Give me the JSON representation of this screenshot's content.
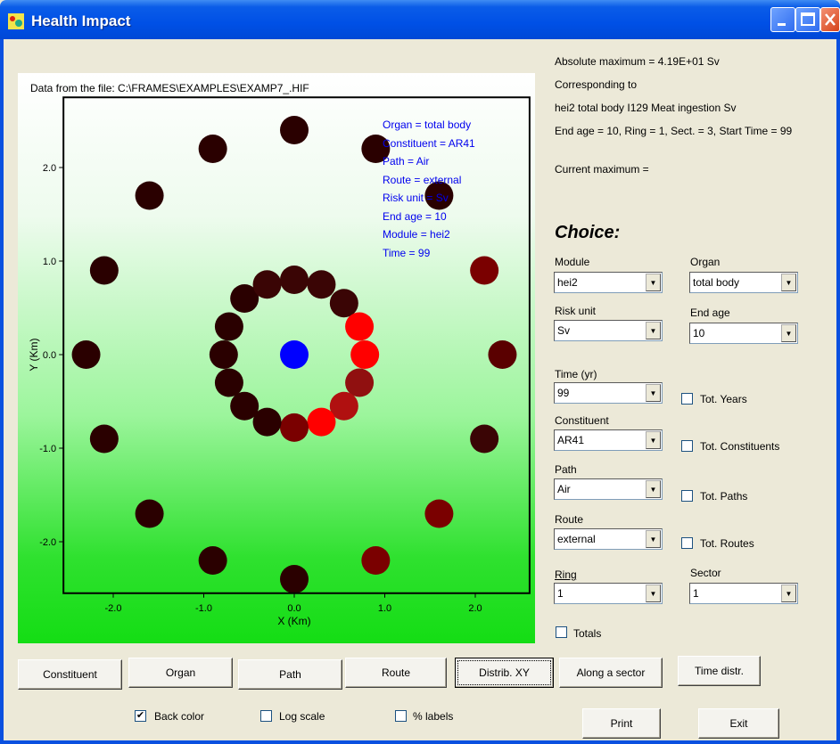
{
  "window": {
    "title": "Health Impact"
  },
  "plot": {
    "file_label": "Data from the file: C:\\FRAMES\\EXAMPLES\\EXAMP7_.HIF",
    "legend": [
      "Organ = total body",
      "Constituent = AR41",
      "Path = Air",
      "Route = external",
      "Risk unit = Sv",
      "End age = 10",
      "Module = hei2",
      "Time = 99"
    ],
    "x_axis_label": "X (Km)",
    "y_axis_label": "Y (Km)",
    "x_ticks": [
      "-2.0",
      "-1.0",
      "0.0",
      "1.0",
      "2.0"
    ],
    "y_ticks": [
      "2.0",
      "1.0",
      "0.0",
      "-1.0",
      "-2.0"
    ]
  },
  "chart_data": {
    "type": "scatter",
    "xlabel": "X (Km)",
    "ylabel": "Y (Km)",
    "xlim": [
      -2.4,
      2.6
    ],
    "ylim": [
      -2.5,
      2.7
    ],
    "colors": {
      "dark": "#2a0000",
      "dark2": "#3a0505",
      "mid": "#5a0000",
      "mid2": "#7a0000",
      "mid3": "#901010",
      "bright": "#b01010",
      "red": "#ff0000",
      "center": "#0000ff"
    },
    "points": [
      {
        "x": 0.0,
        "y": 2.4,
        "c": "dark"
      },
      {
        "x": 0.9,
        "y": 2.2,
        "c": "dark"
      },
      {
        "x": 1.6,
        "y": 1.7,
        "c": "dark"
      },
      {
        "x": 2.1,
        "y": 0.9,
        "c": "mid2"
      },
      {
        "x": 2.3,
        "y": 0.0,
        "c": "mid"
      },
      {
        "x": 2.1,
        "y": -0.9,
        "c": "dark2"
      },
      {
        "x": 1.6,
        "y": -1.7,
        "c": "mid2"
      },
      {
        "x": 0.9,
        "y": -2.2,
        "c": "mid2"
      },
      {
        "x": 0.0,
        "y": -2.4,
        "c": "dark"
      },
      {
        "x": -0.9,
        "y": -2.2,
        "c": "dark"
      },
      {
        "x": -1.6,
        "y": -1.7,
        "c": "dark"
      },
      {
        "x": -2.1,
        "y": -0.9,
        "c": "dark"
      },
      {
        "x": -2.3,
        "y": 0.0,
        "c": "dark"
      },
      {
        "x": -2.1,
        "y": 0.9,
        "c": "dark"
      },
      {
        "x": -1.6,
        "y": 1.7,
        "c": "dark"
      },
      {
        "x": -0.9,
        "y": 2.2,
        "c": "dark"
      },
      {
        "x": 0.0,
        "y": 0.8,
        "c": "dark2"
      },
      {
        "x": 0.3,
        "y": 0.75,
        "c": "dark2"
      },
      {
        "x": 0.55,
        "y": 0.55,
        "c": "dark2"
      },
      {
        "x": 0.72,
        "y": 0.3,
        "c": "red"
      },
      {
        "x": 0.78,
        "y": 0.0,
        "c": "red"
      },
      {
        "x": 0.72,
        "y": -0.3,
        "c": "mid3"
      },
      {
        "x": 0.55,
        "y": -0.55,
        "c": "bright"
      },
      {
        "x": 0.3,
        "y": -0.72,
        "c": "red"
      },
      {
        "x": 0.0,
        "y": -0.78,
        "c": "mid2"
      },
      {
        "x": -0.3,
        "y": -0.72,
        "c": "dark"
      },
      {
        "x": -0.55,
        "y": -0.55,
        "c": "dark"
      },
      {
        "x": -0.72,
        "y": -0.3,
        "c": "dark"
      },
      {
        "x": -0.78,
        "y": 0.0,
        "c": "dark"
      },
      {
        "x": -0.72,
        "y": 0.3,
        "c": "dark"
      },
      {
        "x": -0.55,
        "y": 0.6,
        "c": "dark"
      },
      {
        "x": -0.3,
        "y": 0.75,
        "c": "dark2"
      },
      {
        "x": 0.0,
        "y": 0.0,
        "c": "center"
      }
    ]
  },
  "info": {
    "line1": "Absolute maximum = 4.19E+01 Sv",
    "line2": "Corresponding to",
    "line3": "hei2  total body  I129  Meat  ingestion  Sv",
    "line4": "End age = 10, Ring = 1, Sect. = 3, Start Time = 99",
    "line5": "Current maximum ="
  },
  "choice": {
    "title": "Choice:",
    "module": {
      "label": "Module",
      "value": "hei2"
    },
    "organ": {
      "label": "Organ",
      "value": "total body"
    },
    "risk_unit": {
      "label": "Risk unit",
      "value": "Sv"
    },
    "end_age": {
      "label": "End age",
      "value": "10"
    },
    "time": {
      "label": "Time (yr)",
      "value": "99",
      "tot_label": "Tot. Years"
    },
    "constituent": {
      "label": "Constituent",
      "value": "AR41",
      "tot_label": "Tot. Constituents"
    },
    "path": {
      "label": "Path",
      "value": "Air",
      "tot_label": "Tot. Paths"
    },
    "route": {
      "label": "Route",
      "value": "external",
      "tot_label": "Tot. Routes"
    },
    "ring": {
      "label": "Ring",
      "value": "1"
    },
    "sector": {
      "label": "Sector",
      "value": "1"
    },
    "totals_label": "Totals"
  },
  "buttons": {
    "constituent": "Constituent",
    "organ": "Organ",
    "path": "Path",
    "route": "Route",
    "distrib": "Distrib. XY",
    "along": "Along a sector",
    "time": "Time distr.",
    "print": "Print",
    "exit": "Exit"
  },
  "options": {
    "back_color": "Back color",
    "back_color_checked": true,
    "log_scale": "Log scale",
    "pct_labels": "% labels"
  }
}
